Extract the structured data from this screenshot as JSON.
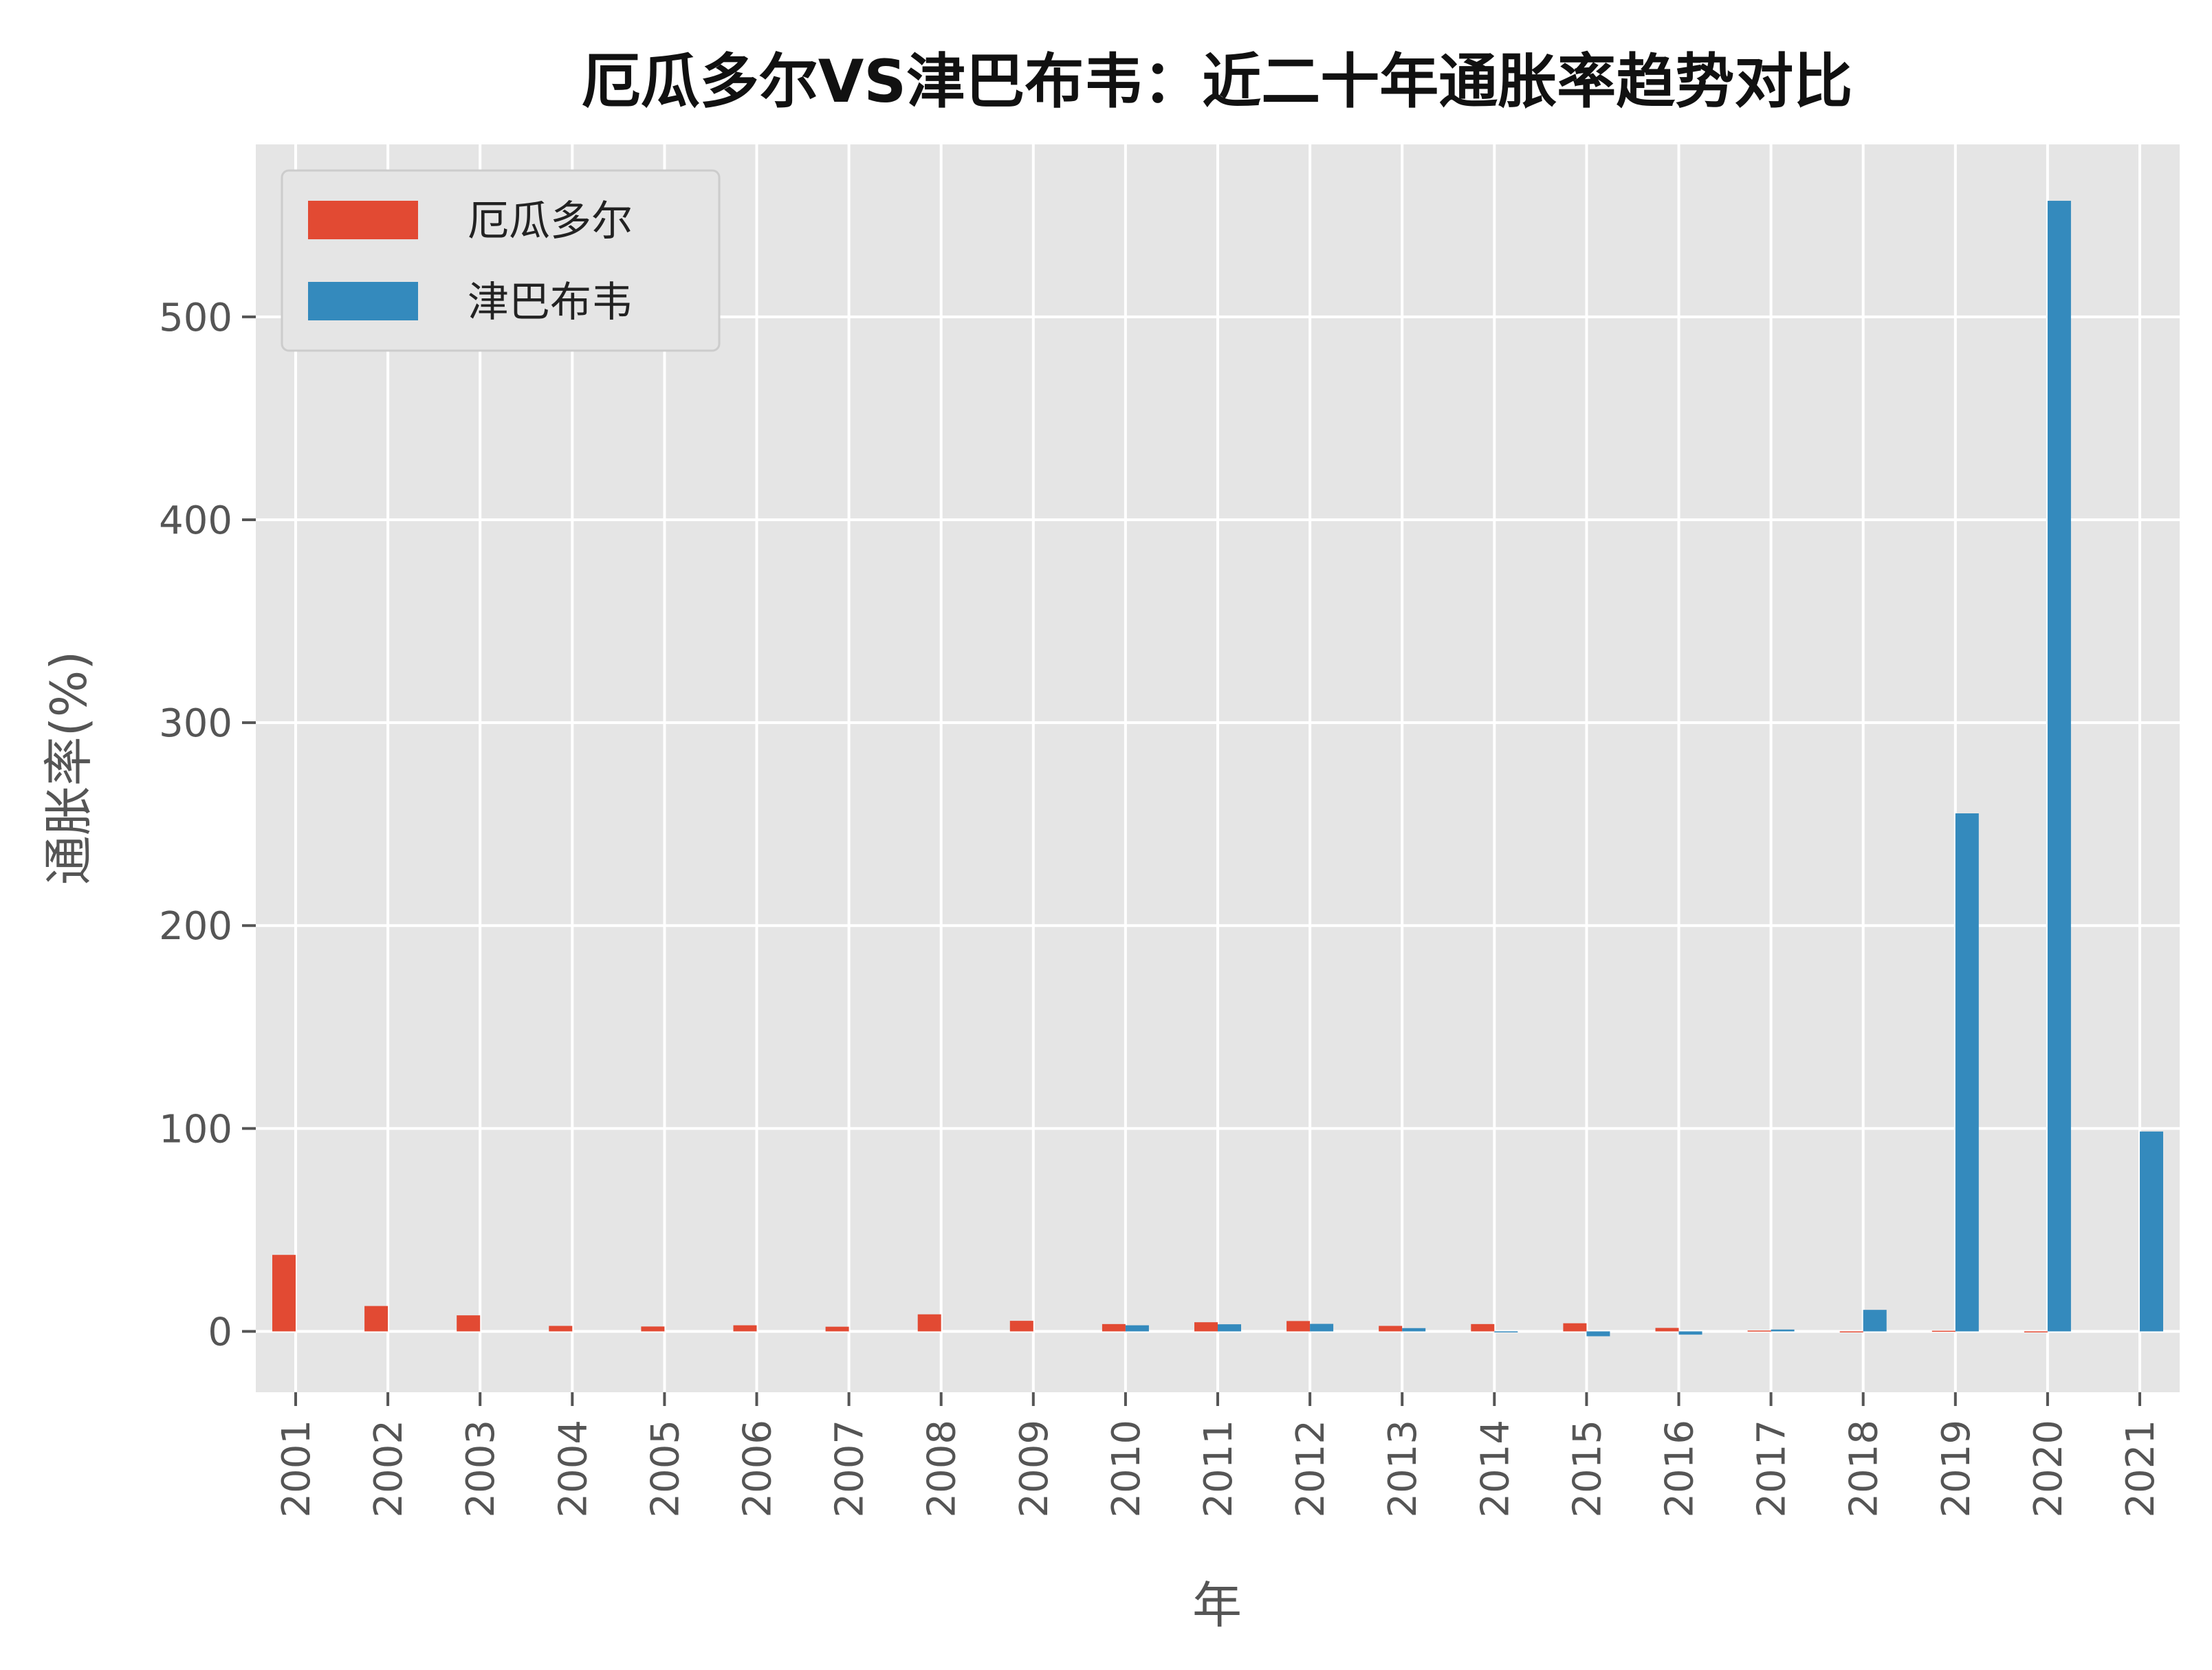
{
  "chart_data": {
    "type": "bar",
    "title": "厄瓜多尔VS津巴布韦：近二十年通胀率趋势对比",
    "xlabel": "年",
    "ylabel": "通胀率(%)",
    "categories": [
      "2001",
      "2002",
      "2003",
      "2004",
      "2005",
      "2006",
      "2007",
      "2008",
      "2009",
      "2010",
      "2011",
      "2012",
      "2013",
      "2014",
      "2015",
      "2016",
      "2017",
      "2018",
      "2019",
      "2020",
      "2021"
    ],
    "series": [
      {
        "name": "厄瓜多尔",
        "color": "#E24A33",
        "values": [
          37.7,
          12.5,
          7.9,
          2.7,
          2.4,
          3.0,
          2.3,
          8.4,
          5.2,
          3.6,
          4.5,
          5.1,
          2.7,
          3.6,
          4.0,
          1.7,
          0.4,
          -0.2,
          0.3,
          -0.3,
          null
        ]
      },
      {
        "name": "津巴布韦",
        "color": "#348ABD",
        "values": [
          null,
          null,
          null,
          null,
          null,
          null,
          null,
          null,
          null,
          3.0,
          3.5,
          3.7,
          1.6,
          -0.2,
          -2.4,
          -1.6,
          0.9,
          10.6,
          255.3,
          557.2,
          98.5
        ]
      }
    ],
    "yticks": [
      0,
      100,
      200,
      300,
      400,
      500
    ],
    "ylim": [
      -30,
      585
    ],
    "grid": true,
    "legend_position": "upper-left"
  }
}
